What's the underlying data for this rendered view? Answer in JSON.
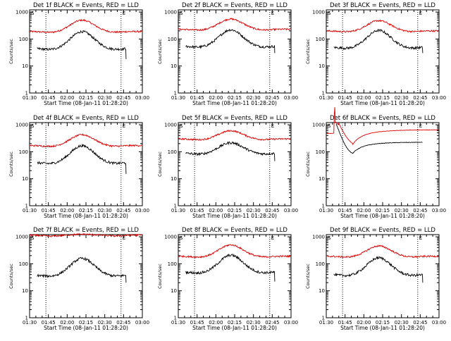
{
  "panels": [
    {
      "title": "Det 1f BLACK = Events, RED = LLD",
      "red_base": 190,
      "red_amp": 0.42,
      "black_base": 45,
      "black_amp": 0.62,
      "black_end_drop": 18
    },
    {
      "title": "Det 2f BLACK = Events, RED = LLD",
      "red_base": 230,
      "red_amp": 0.38,
      "black_base": 55,
      "black_amp": 0.6,
      "black_end_drop": 30
    },
    {
      "title": "Det 3f BLACK = Events, RED = LLD",
      "red_base": 200,
      "red_amp": 0.38,
      "black_base": 50,
      "black_amp": 0.62,
      "black_end_drop": 30
    },
    {
      "title": "Det 4f BLACK = Events, RED = LLD",
      "red_base": 170,
      "red_amp": 0.4,
      "black_base": 40,
      "black_amp": 0.62,
      "black_end_drop": 15
    },
    {
      "title": "Det 5f BLACK = Events, RED = LLD",
      "red_base": 300,
      "red_amp": 0.3,
      "black_base": 90,
      "black_amp": 0.38,
      "black_end_drop": 45
    },
    {
      "title": "Det 6f BLACK = Events, RED = LLD",
      "special": true
    },
    {
      "title": "Det 7f BLACK = Events, RED = LLD",
      "red_base": 1150,
      "red_amp": 0.03,
      "black_base": 38,
      "black_amp": 0.62,
      "black_end_drop": 20
    },
    {
      "title": "Det 8f BLACK = Events, RED = LLD",
      "red_base": 190,
      "red_amp": 0.42,
      "black_base": 50,
      "black_amp": 0.62,
      "black_end_drop": 22
    },
    {
      "title": "Det 9f BLACK = Events, RED = LLD",
      "red_base": 190,
      "red_amp": 0.38,
      "black_base": 40,
      "black_amp": 0.62,
      "black_end_drop": 20
    }
  ],
  "x_tick_labels": [
    "01:30",
    "01:45",
    "02:00",
    "02:15",
    "02:30",
    "02:45",
    "03:00"
  ],
  "y_tick_labels": [
    "1",
    "10",
    "100",
    "1000"
  ],
  "ylabel": "Counts/sec",
  "xlabel": "Start Time (08-Jan-11 01:28:20)",
  "marker_S": "S",
  "marker_E": "E",
  "colors": {
    "events": "#000000",
    "lld": "#dd0000",
    "axes": "#000000"
  },
  "chart_data": {
    "type": "line",
    "x": [
      "01:30",
      "01:45",
      "02:00",
      "02:15",
      "02:30",
      "02:45",
      "03:00"
    ],
    "yscale": "log",
    "ylim": [
      1,
      1000
    ],
    "grid": false,
    "legend": "in titles",
    "series": [
      {
        "name": "BLACK = Events",
        "color": "#000000"
      },
      {
        "name": "RED = LLD",
        "color": "#dd0000"
      }
    ],
    "vertical_markers": [
      "01:43",
      "02:43"
    ]
  }
}
